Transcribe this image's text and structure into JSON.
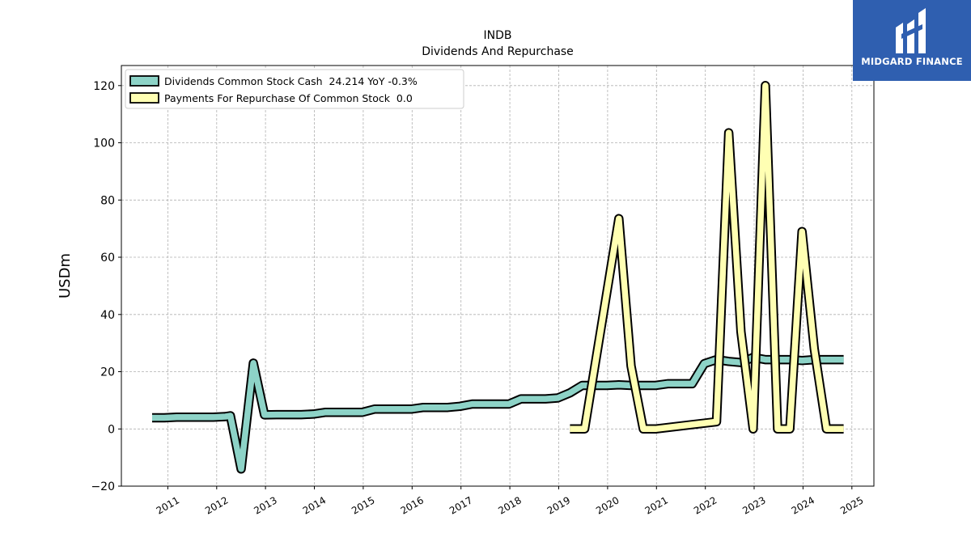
{
  "logo": {
    "text": "MIDGARD FINANCE",
    "icon": "midgard-logo-icon",
    "color": "#2f5fb0"
  },
  "chart_data": {
    "type": "line",
    "title": "INDB",
    "subtitle": "Dividends And Repurchase",
    "ylabel": "USDm",
    "xlabel": "",
    "ylim": [
      -20,
      127
    ],
    "xlim": [
      2010.05,
      2025.45
    ],
    "grid": true,
    "legend_position": "top-left",
    "x_ticks": [
      2011,
      2012,
      2013,
      2014,
      2015,
      2016,
      2017,
      2018,
      2019,
      2020,
      2021,
      2022,
      2023,
      2024,
      2025
    ],
    "x_tick_labels": [
      "2011",
      "2012",
      "2013",
      "2014",
      "2015",
      "2016",
      "2017",
      "2018",
      "2019",
      "2020",
      "2021",
      "2022",
      "2023",
      "2024",
      "2025"
    ],
    "y_ticks": [
      -20,
      0,
      20,
      40,
      60,
      80,
      100,
      120
    ],
    "y_tick_labels": [
      "−20",
      "0",
      "20",
      "40",
      "60",
      "80",
      "100",
      "120"
    ],
    "series": [
      {
        "name": "Dividends Common Stock Cash",
        "legend_label": "Dividends Common Stock Cash  24.214 YoY -0.3%",
        "color": "#8dd3c7",
        "points": [
          [
            2010.68,
            3.9
          ],
          [
            2010.93,
            3.9
          ],
          [
            2011.18,
            4.1
          ],
          [
            2011.43,
            4.1
          ],
          [
            2011.68,
            4.1
          ],
          [
            2011.93,
            4.1
          ],
          [
            2012.18,
            4.3
          ],
          [
            2012.28,
            4.6
          ],
          [
            2012.5,
            -14.0
          ],
          [
            2012.75,
            23.0
          ],
          [
            2012.98,
            4.9
          ],
          [
            2013.23,
            5.0
          ],
          [
            2013.48,
            5.0
          ],
          [
            2013.73,
            5.0
          ],
          [
            2013.98,
            5.2
          ],
          [
            2014.23,
            5.8
          ],
          [
            2014.48,
            5.8
          ],
          [
            2014.73,
            5.8
          ],
          [
            2014.98,
            5.8
          ],
          [
            2015.23,
            6.9
          ],
          [
            2015.48,
            6.9
          ],
          [
            2015.73,
            6.9
          ],
          [
            2015.98,
            6.9
          ],
          [
            2016.23,
            7.5
          ],
          [
            2016.48,
            7.5
          ],
          [
            2016.73,
            7.5
          ],
          [
            2016.98,
            7.9
          ],
          [
            2017.23,
            8.7
          ],
          [
            2017.48,
            8.7
          ],
          [
            2017.73,
            8.7
          ],
          [
            2017.98,
            8.7
          ],
          [
            2018.23,
            10.5
          ],
          [
            2018.48,
            10.5
          ],
          [
            2018.73,
            10.5
          ],
          [
            2018.98,
            10.8
          ],
          [
            2019.23,
            12.6
          ],
          [
            2019.48,
            15.2
          ],
          [
            2019.73,
            15.2
          ],
          [
            2019.98,
            15.2
          ],
          [
            2020.23,
            15.4
          ],
          [
            2020.48,
            15.2
          ],
          [
            2020.73,
            15.2
          ],
          [
            2020.98,
            15.2
          ],
          [
            2021.23,
            15.8
          ],
          [
            2021.48,
            15.8
          ],
          [
            2021.73,
            15.8
          ],
          [
            2021.98,
            22.8
          ],
          [
            2022.23,
            24.2
          ],
          [
            2022.48,
            23.6
          ],
          [
            2022.73,
            23.2
          ],
          [
            2022.98,
            25.0
          ],
          [
            2023.23,
            24.2
          ],
          [
            2023.48,
            24.2
          ],
          [
            2023.73,
            24.2
          ],
          [
            2023.98,
            23.9
          ],
          [
            2024.23,
            24.2
          ],
          [
            2024.48,
            24.2
          ],
          [
            2024.73,
            24.2
          ],
          [
            2024.83,
            24.2
          ]
        ]
      },
      {
        "name": "Payments For Repurchase Of Common Stock",
        "legend_label": "Payments For Repurchase Of Common Stock  0.0",
        "color": "#ffffb3",
        "points": [
          [
            2019.23,
            0.0
          ],
          [
            2019.53,
            0.0
          ],
          [
            2020.23,
            73.5
          ],
          [
            2020.48,
            22.0
          ],
          [
            2020.73,
            0.0
          ],
          [
            2020.98,
            0.0
          ],
          [
            2021.73,
            1.5
          ],
          [
            2022.23,
            2.5
          ],
          [
            2022.48,
            103.5
          ],
          [
            2022.73,
            34.0
          ],
          [
            2022.98,
            0.0
          ],
          [
            2023.23,
            120.0
          ],
          [
            2023.48,
            0.0
          ],
          [
            2023.73,
            0.0
          ],
          [
            2023.98,
            69.0
          ],
          [
            2024.23,
            28.0
          ],
          [
            2024.48,
            0.0
          ],
          [
            2024.83,
            0.0
          ]
        ]
      }
    ]
  }
}
